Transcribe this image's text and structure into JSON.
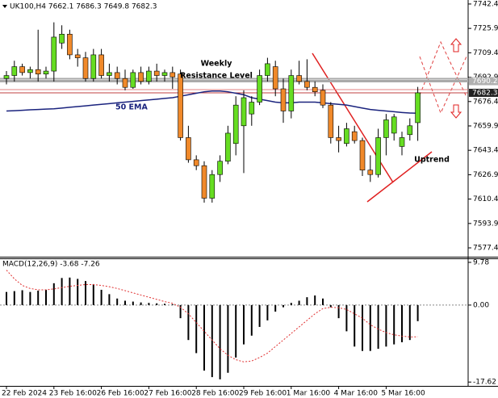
{
  "chart_data": [
    {
      "type": "candlestick",
      "title": "UK100,H4 7662.1 7686.3 7649.8 7682.3",
      "categories": [
        "22 Feb 2024",
        null,
        null,
        null,
        null,
        null,
        "23 Feb 16:00",
        null,
        null,
        null,
        null,
        null,
        "26 Feb 16:00",
        null,
        null,
        null,
        null,
        null,
        "27 Feb 16:00",
        null,
        null,
        null,
        null,
        null,
        "28 Feb 16:00",
        null,
        null,
        null,
        null,
        null,
        "29 Feb 16:00",
        null,
        null,
        null,
        null,
        null,
        "1 Mar 16:00",
        null,
        null,
        null,
        null,
        null,
        "4 Mar 16:00",
        null,
        null,
        null,
        null,
        null,
        "5 Mar 16:00",
        null,
        null,
        null,
        null
      ],
      "open": [
        7692,
        7694,
        7700,
        7696,
        7698,
        7695,
        7697,
        7716,
        7722,
        7708,
        7706,
        7692,
        7708,
        7694,
        7696,
        7692,
        7686,
        7696,
        7690,
        7697,
        7694,
        7696,
        7695,
        7652,
        7637,
        7633,
        7611,
        7627,
        7636,
        7648,
        7660,
        7668,
        7676,
        7694,
        7700,
        7685,
        7670,
        7694,
        7690,
        7686,
        7684,
        7674,
        7652,
        7648,
        7656,
        7650,
        7630,
        7627,
        7652,
        7655,
        7646,
        7654,
        7662.1
      ],
      "high": [
        7697,
        7704,
        7702,
        7700,
        7725,
        7700,
        7730,
        7728,
        7725,
        7712,
        7710,
        7712,
        7712,
        7702,
        7700,
        7698,
        7698,
        7700,
        7700,
        7702,
        7698,
        7700,
        7698,
        7660,
        7640,
        7636,
        7630,
        7640,
        7660,
        7680,
        7684,
        7680,
        7698,
        7706,
        7704,
        7692,
        7698,
        7704,
        7705,
        7690,
        7688,
        7676,
        7660,
        7662,
        7660,
        7652,
        7640,
        7658,
        7668,
        7668,
        7656,
        7665,
        7686.3
      ],
      "low": [
        7688,
        7690,
        7694,
        7692,
        7690,
        7692,
        7690,
        7712,
        7705,
        7700,
        7690,
        7690,
        7692,
        7690,
        7688,
        7684,
        7685,
        7688,
        7688,
        7690,
        7690,
        7685,
        7650,
        7635,
        7630,
        7608,
        7608,
        7622,
        7634,
        7640,
        7628,
        7660,
        7674,
        7690,
        7680,
        7662,
        7665,
        7688,
        7684,
        7680,
        7672,
        7648,
        7642,
        7646,
        7648,
        7626,
        7622,
        7625,
        7640,
        7650,
        7640,
        7650,
        7649.8
      ],
      "close": [
        7694,
        7700,
        7696,
        7698,
        7695,
        7697,
        7720,
        7722,
        7708,
        7706,
        7692,
        7708,
        7694,
        7696,
        7692,
        7686,
        7696,
        7690,
        7697,
        7694,
        7696,
        7693,
        7652,
        7637,
        7633,
        7611,
        7627,
        7636,
        7655,
        7674,
        7679,
        7676,
        7694,
        7702,
        7685,
        7670,
        7694,
        7690,
        7686,
        7683,
        7674,
        7652,
        7650,
        7658,
        7650,
        7630,
        7627,
        7652,
        7664,
        7666,
        7652,
        7660,
        7682.3
      ],
      "up_color": "#66dd22",
      "down_color": "#f0892a",
      "series": [
        {
          "name": "50 EMA",
          "color": "#1a237e",
          "values": [
            7670,
            7670.2,
            7670.5,
            7670.8,
            7671,
            7671.3,
            7671.5,
            7672,
            7672.5,
            7673,
            7673.5,
            7674,
            7674.5,
            7675,
            7675.5,
            7676,
            7676.5,
            7677,
            7677.5,
            7678,
            7678.5,
            7679,
            7680,
            7681,
            7682,
            7683,
            7683.5,
            7683.5,
            7683,
            7682,
            7681,
            7679,
            7678,
            7677,
            7676,
            7675.5,
            7675.5,
            7676,
            7676,
            7676,
            7675.5,
            7675,
            7674.5,
            7674,
            7673,
            7672,
            7671,
            7670.5,
            7670,
            7669.5,
            7669,
            7668.6,
            7668.5
          ]
        }
      ],
      "levels": [
        7690.2
      ],
      "last_price": 7682.3,
      "annotations": [
        "Weekly",
        "Resistance Level",
        "Uptrend"
      ],
      "ylim": [
        7571.4,
        7745.1
      ],
      "yticks": [
        7742.4,
        7725.9,
        7709.4,
        7692.9,
        7676.4,
        7659.9,
        7643.4,
        7626.9,
        7610.4,
        7593.9,
        7577.4
      ]
    },
    {
      "type": "macd",
      "title": "MACD(12,26,9) -3.68 -7.26",
      "histogram": [
        3,
        3.2,
        3.4,
        3,
        3.3,
        3.5,
        5,
        6.2,
        6.3,
        6,
        5.5,
        4.8,
        3.5,
        2.5,
        1.5,
        1,
        0.8,
        0.6,
        0.5,
        0.4,
        0.3,
        0.2,
        -3,
        -8,
        -11,
        -15,
        -16.5,
        -17,
        -15.5,
        -12,
        -9,
        -7,
        -5,
        -3.5,
        -1.5,
        -0.5,
        0.5,
        1,
        1.8,
        2.2,
        1.5,
        -0.5,
        -3,
        -6,
        -9.5,
        -10.5,
        -10.5,
        -10,
        -9.5,
        -9,
        -8.5,
        -8,
        -3.68
      ],
      "signal": [
        8,
        6,
        4.5,
        3.8,
        3.5,
        3.5,
        3.7,
        4,
        4.3,
        4.5,
        4.7,
        4.7,
        4.5,
        4.2,
        3.8,
        3.3,
        2.8,
        2.3,
        1.8,
        1.3,
        0.8,
        0.4,
        -0.5,
        -2,
        -4,
        -6,
        -8,
        -10,
        -11.5,
        -12.5,
        -13,
        -12.8,
        -12,
        -11,
        -9.5,
        -8,
        -6.5,
        -5,
        -3.5,
        -2,
        -0.8,
        -0.5,
        -0.6,
        -1,
        -2,
        -3,
        -4.5,
        -5.5,
        -6.3,
        -6.8,
        -7.1,
        -7.3,
        -7.26
      ],
      "histogram_color": "#000000",
      "signal_color": "#e03030",
      "ylim": [
        -18.5,
        10.7
      ],
      "yticks": [
        9.78,
        {
          "value": 0,
          "label": "0.00"
        },
        -17.62
      ]
    }
  ]
}
